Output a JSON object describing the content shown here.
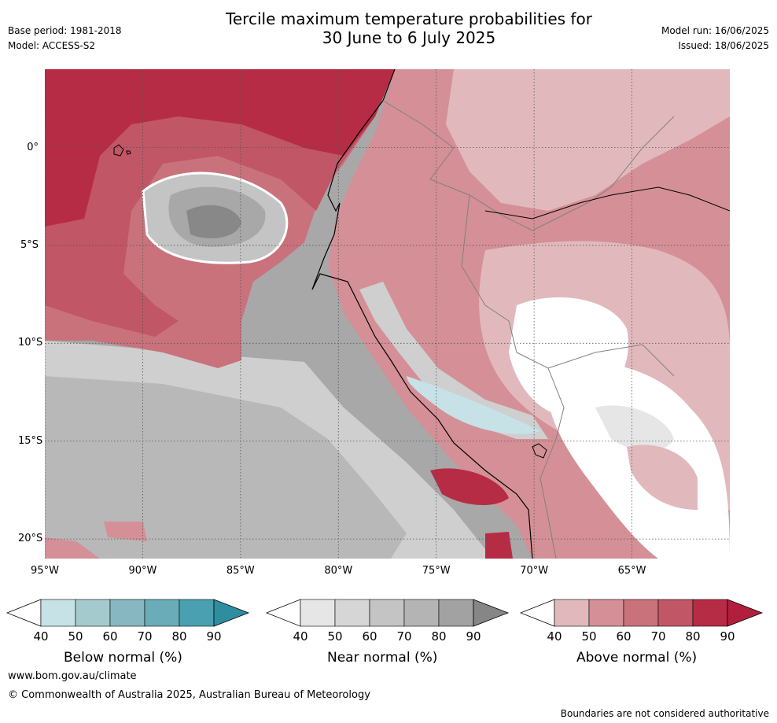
{
  "title": {
    "line1": "Tercile maximum temperature probabilities for",
    "line2": "30 June to 6 July 2025"
  },
  "info_left": {
    "base_period": "Base period: 1981-2018",
    "model": "Model: ACCESS-S2"
  },
  "info_right": {
    "model_run": "Model run: 16/06/2025",
    "issued": "Issued: 18/06/2025"
  },
  "map": {
    "lon_range": [
      -95,
      -60
    ],
    "lat_range": [
      -21,
      4
    ],
    "lat_ticks": [
      {
        "value": 0,
        "label": "0°"
      },
      {
        "value": -5,
        "label": "5°S"
      },
      {
        "value": -10,
        "label": "10°S"
      },
      {
        "value": -15,
        "label": "15°S"
      },
      {
        "value": -20,
        "label": "20°S"
      }
    ],
    "lon_ticks": [
      {
        "value": -95,
        "label": "95°W"
      },
      {
        "value": -90,
        "label": "90°W"
      },
      {
        "value": -85,
        "label": "85°W"
      },
      {
        "value": -80,
        "label": "80°W"
      },
      {
        "value": -75,
        "label": "75°W"
      },
      {
        "value": -70,
        "label": "70°W"
      },
      {
        "value": -65,
        "label": "65°W"
      }
    ],
    "gridlines": "dotted"
  },
  "colorbars": [
    {
      "label": "Below normal (%)",
      "ticks": [
        "40",
        "50",
        "60",
        "70",
        "80",
        "90"
      ],
      "colors": [
        "#c6e2e6",
        "#a5cace",
        "#87b8c2",
        "#6aacb8",
        "#4aa0b0"
      ],
      "extend_color": "#2e8ea0"
    },
    {
      "label": "Near normal (%)",
      "ticks": [
        "40",
        "50",
        "60",
        "70",
        "80",
        "90"
      ],
      "colors": [
        "#e6e6e6",
        "#d6d6d6",
        "#c4c4c4",
        "#b4b4b4",
        "#a2a2a2"
      ],
      "extend_color": "#868686"
    },
    {
      "label": "Above normal (%)",
      "ticks": [
        "40",
        "50",
        "60",
        "70",
        "80",
        "90"
      ],
      "colors": [
        "#e1b9bd",
        "#d49096",
        "#c9727c",
        "#c05666",
        "#b62c44"
      ],
      "extend_color": "#b21f3c"
    }
  ],
  "footer": {
    "url": "www.bom.gov.au/climate",
    "copyright": "© Commonwealth of Australia 2025, Australian Bureau of Meteorology",
    "disclaimer": "Boundaries are not considered authoritative"
  }
}
